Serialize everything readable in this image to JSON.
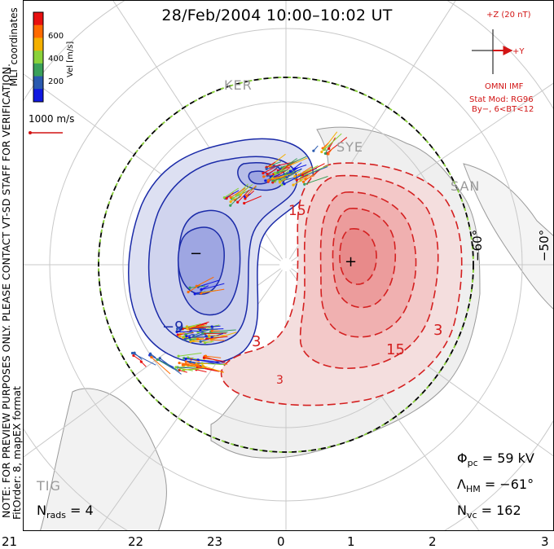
{
  "title": "28/Feb/2004 10:00–10:02 UT",
  "colorbar": {
    "label": "Vel [m/s]",
    "ticks": [
      "600",
      "400",
      "200"
    ],
    "colors": [
      "#e81010",
      "#ff6a00",
      "#f4b000",
      "#8ad23a",
      "#3aa05a",
      "#2a5ab0",
      "#1018e0"
    ]
  },
  "coord_label": "MLT coordinates",
  "ref_vector": {
    "label": "1000 m/s"
  },
  "imf": {
    "z_label": "+Z (20 nT)",
    "y_label": "+Y",
    "source": "OMNI IMF",
    "model": "Stat Mod: RG96",
    "condition": "By−, 6<BT<12"
  },
  "sites": [
    "KER",
    "SYE",
    "SAN",
    "TIG"
  ],
  "lat_labels": [
    "−60°",
    "−50°"
  ],
  "stats": {
    "phi_symbol": "Φ",
    "phi_sub": "pc",
    "phi_value": "= 59 kV",
    "lambda_symbol": "Λ",
    "lambda_sub": "HM",
    "lambda_value": "= −61°",
    "nvc_symbol": "N",
    "nvc_sub": "vc",
    "nvc_value": "= 162",
    "nrads_symbol": "N",
    "nrads_sub": "rads",
    "nrads_value": "= 4"
  },
  "fit_note": "FitOrder: 8, mapEX format",
  "preview_note": "NOTE: FOR PREVIEW PURPOSES ONLY. PLEASE CONTACT VT-SD STAFF FOR VERIFICATION.",
  "mlt_ticks": [
    "21",
    "22",
    "23",
    "0",
    "1",
    "2",
    "3"
  ],
  "contour_labels": {
    "neg": "−9",
    "pos1": "15",
    "pos2": "3",
    "pos3": "3",
    "pos4": "15",
    "pos5": "3"
  },
  "markers": {
    "min": "−",
    "max": "+"
  },
  "colors": {
    "positive": "#d42020",
    "negative": "#1a2aa8",
    "hmb": "#000000"
  }
}
